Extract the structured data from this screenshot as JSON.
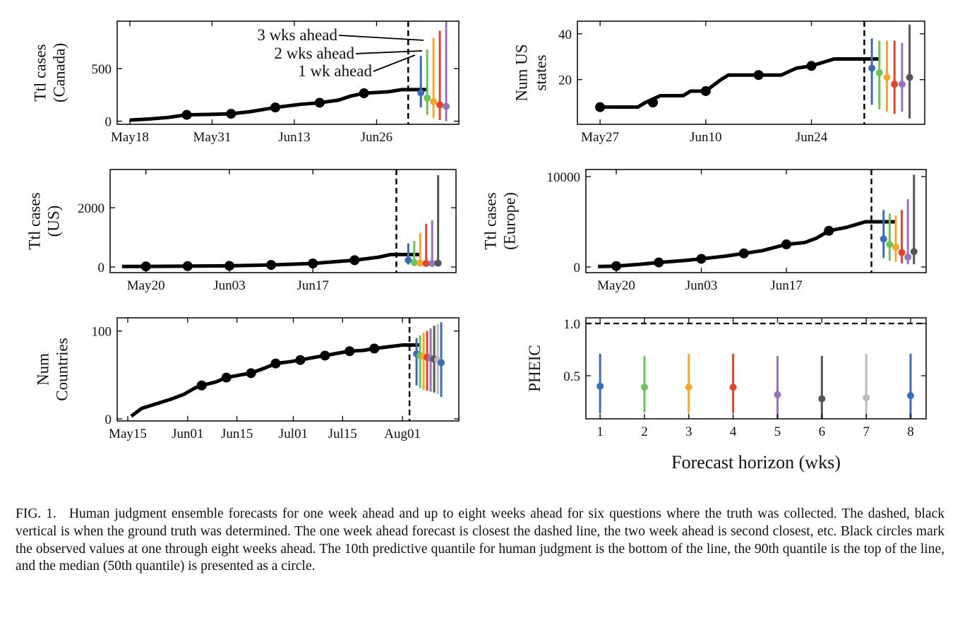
{
  "chart_data": [
    {
      "type": "line",
      "ylabel": [
        "Ttl cases",
        "(Canada)"
      ],
      "xlim": [
        "05-16",
        "07-09"
      ],
      "xticks": [
        {
          "value": "05-18",
          "label": "May18"
        },
        {
          "value": "05-31",
          "label": "May31"
        },
        {
          "value": "06-13",
          "label": "Jun13"
        },
        {
          "value": "06-26",
          "label": "Jun26"
        }
      ],
      "ylim": [
        -30,
        950
      ],
      "yticks": [
        0,
        500
      ],
      "x": [
        "05-18",
        "05-21",
        "05-24",
        "05-27",
        "05-31",
        "06-03",
        "06-06",
        "06-10",
        "06-14",
        "06-17",
        "06-20",
        "06-22",
        "06-24",
        "06-28",
        "06-30",
        "07-04"
      ],
      "values": [
        10,
        20,
        35,
        60,
        65,
        70,
        90,
        130,
        160,
        175,
        200,
        240,
        265,
        280,
        300,
        300
      ],
      "points": {
        "x": [
          "05-27",
          "06-03",
          "06-10",
          "06-17",
          "06-24"
        ],
        "values": [
          60,
          70,
          130,
          175,
          265
        ]
      },
      "truth": "07-01",
      "forecasts": {
        "x": [
          "07-03",
          "07-04",
          "07-05",
          "07-06",
          "07-07"
        ],
        "low": [
          130,
          60,
          30,
          10,
          0
        ],
        "median": [
          270,
          220,
          185,
          155,
          140
        ],
        "high": [
          620,
          680,
          790,
          860,
          950
        ],
        "colors": [
          "#3a6db5",
          "#6cc35a",
          "#f0a830",
          "#e0442a",
          "#9a72b8"
        ]
      },
      "annotations": [
        "3 wks ahead",
        "2 wks ahead",
        "1 wk ahead"
      ]
    },
    {
      "type": "line",
      "ylabel": [
        "Num US",
        "states"
      ],
      "xlim": [
        "05-24",
        "07-09"
      ],
      "xticks": [
        {
          "value": "05-27",
          "label": "May27"
        },
        {
          "value": "06-10",
          "label": "Jun10"
        },
        {
          "value": "06-24",
          "label": "Jun24"
        }
      ],
      "ylim": [
        0.5,
        45.5
      ],
      "yticks": [
        20,
        40
      ],
      "x": [
        "05-27",
        "06-01",
        "06-02",
        "06-04",
        "06-07",
        "06-08",
        "06-10",
        "06-12",
        "06-13",
        "06-20",
        "06-22",
        "06-24",
        "06-27",
        "07-03"
      ],
      "values": [
        8,
        8,
        10,
        13,
        13,
        15,
        15,
        20,
        22,
        22,
        25,
        26,
        29,
        29
      ],
      "points": {
        "x": [
          "05-27",
          "06-03",
          "06-10",
          "06-17",
          "06-24"
        ],
        "values": [
          8,
          10,
          15,
          22,
          26
        ]
      },
      "truth": "07-01",
      "forecasts": {
        "x": [
          "07-02",
          "07-03",
          "07-04",
          "07-05",
          "07-06",
          "07-07"
        ],
        "low": [
          9,
          7,
          6,
          5,
          6,
          3
        ],
        "median": [
          25,
          23,
          21,
          18,
          18,
          21
        ],
        "high": [
          38,
          37,
          37,
          37,
          36,
          44
        ],
        "colors": [
          "#3a6db5",
          "#6cc35a",
          "#f0a830",
          "#e0442a",
          "#9a72b8",
          "#555555"
        ]
      }
    },
    {
      "type": "line",
      "ylabel": [
        "Ttl cases",
        "(US)"
      ],
      "xlim": [
        "05-14",
        "07-11"
      ],
      "xticks": [
        {
          "value": "05-20",
          "label": "May20"
        },
        {
          "value": "06-03",
          "label": "Jun03"
        },
        {
          "value": "06-17",
          "label": "Jun17"
        }
      ],
      "ylim": [
        -190,
        3290
      ],
      "yticks": [
        0,
        2000
      ],
      "x": [
        "05-16",
        "05-20",
        "05-27",
        "06-03",
        "06-10",
        "06-17",
        "06-24",
        "06-28",
        "06-30",
        "07-05"
      ],
      "values": [
        20,
        20,
        30,
        40,
        70,
        120,
        230,
        330,
        420,
        420
      ],
      "points": {
        "x": [
          "05-20",
          "05-27",
          "06-03",
          "06-10",
          "06-17",
          "06-24"
        ],
        "values": [
          20,
          30,
          40,
          70,
          120,
          230
        ]
      },
      "truth": "07-01",
      "forecasts": {
        "x": [
          "07-03",
          "07-04",
          "07-05",
          "07-06",
          "07-07",
          "07-08"
        ],
        "low": [
          80,
          50,
          40,
          30,
          20,
          20
        ],
        "median": [
          230,
          150,
          130,
          120,
          120,
          130
        ],
        "high": [
          800,
          880,
          1150,
          1450,
          1580,
          3100
        ],
        "colors": [
          "#3a6db5",
          "#6cc35a",
          "#f0a830",
          "#e0442a",
          "#9a72b8",
          "#555555"
        ]
      }
    },
    {
      "type": "line",
      "ylabel": [
        "Ttl cases",
        "(Europe)"
      ],
      "xlim": [
        "05-15",
        "07-10"
      ],
      "xticks": [
        {
          "value": "05-20",
          "label": "May20"
        },
        {
          "value": "06-03",
          "label": "Jun03"
        },
        {
          "value": "06-17",
          "label": "Jun17"
        }
      ],
      "ylim": [
        -625,
        10780
      ],
      "yticks": [
        0,
        10000
      ],
      "x": [
        "05-17",
        "05-20",
        "05-24",
        "05-27",
        "05-31",
        "06-03",
        "06-07",
        "06-10",
        "06-13",
        "06-17",
        "06-20",
        "06-22",
        "06-24",
        "06-27",
        "06-30",
        "07-05"
      ],
      "values": [
        50,
        100,
        300,
        500,
        700,
        900,
        1200,
        1500,
        1800,
        2500,
        2700,
        3200,
        4000,
        4400,
        5000,
        5000
      ],
      "points": {
        "x": [
          "05-20",
          "05-27",
          "06-03",
          "06-10",
          "06-17",
          "06-24"
        ],
        "values": [
          100,
          500,
          900,
          1500,
          2500,
          4000
        ]
      },
      "truth": "07-01",
      "forecasts": {
        "x": [
          "07-03",
          "07-04",
          "07-05",
          "07-06",
          "07-07",
          "07-08"
        ],
        "low": [
          1000,
          700,
          600,
          400,
          300,
          300
        ],
        "median": [
          3100,
          2500,
          2200,
          1600,
          1100,
          1700
        ],
        "high": [
          6300,
          5900,
          5700,
          6300,
          7500,
          10200
        ],
        "colors": [
          "#3a6db5",
          "#6cc35a",
          "#f0a830",
          "#e0442a",
          "#9a72b8",
          "#555555"
        ]
      }
    },
    {
      "type": "line",
      "ylabel": [
        "Num",
        "Countries"
      ],
      "xlim": [
        "05-12",
        "08-17"
      ],
      "xticks": [
        {
          "value": "05-15",
          "label": "May15"
        },
        {
          "value": "06-01",
          "label": "Jun01"
        },
        {
          "value": "06-15",
          "label": "Jun15"
        },
        {
          "value": "07-01",
          "label": "Jul01"
        },
        {
          "value": "07-15",
          "label": "Jul15"
        },
        {
          "value": "08-01",
          "label": "Aug01"
        }
      ],
      "ylim": [
        -2.4,
        115
      ],
      "yticks": [
        0,
        100
      ],
      "x": [
        "05-16",
        "05-19",
        "05-23",
        "05-27",
        "05-31",
        "06-03",
        "06-05",
        "06-09",
        "06-12",
        "06-16",
        "06-19",
        "06-23",
        "06-26",
        "06-30",
        "07-03",
        "07-07",
        "07-10",
        "07-14",
        "07-17",
        "07-21",
        "07-24",
        "07-28",
        "08-01",
        "08-06"
      ],
      "values": [
        3,
        12,
        17,
        22,
        28,
        35,
        38,
        42,
        47,
        50,
        52,
        58,
        63,
        65,
        67,
        70,
        72,
        75,
        77,
        78,
        80,
        82,
        84,
        84
      ],
      "points": {
        "x": [
          "06-05",
          "06-12",
          "06-19",
          "06-26",
          "07-03",
          "07-10",
          "07-17",
          "07-24"
        ],
        "values": [
          38,
          47,
          52,
          63,
          67,
          72,
          77,
          80
        ]
      },
      "truth": "08-03",
      "forecasts": {
        "x": [
          "08-05",
          "08-06",
          "08-07",
          "08-08",
          "08-09",
          "08-10",
          "08-11",
          "08-12"
        ],
        "low": [
          38,
          35,
          33,
          32,
          31,
          30,
          28,
          25
        ],
        "median": [
          74,
          72,
          71,
          70,
          69,
          68,
          67,
          64
        ],
        "high": [
          92,
          95,
          98,
          100,
          103,
          106,
          108,
          110
        ],
        "colors": [
          "#3a6db5",
          "#6cc35a",
          "#f0a830",
          "#e0442a",
          "#9a72b8",
          "#555555",
          "#bbbbbb",
          "#3a6db5"
        ]
      }
    },
    {
      "type": "interval",
      "ylabel": [
        "PHEIC"
      ],
      "xlabel": "Forecast horizon (wks)",
      "xlim": [
        0.68,
        8.35
      ],
      "xticks": [
        1,
        2,
        3,
        4,
        5,
        6,
        7,
        8
      ],
      "ylim": [
        0.088,
        1.054
      ],
      "yticks": [
        0.5,
        {
          "value": 1,
          "label": "1.0"
        }
      ],
      "hline": 1,
      "forecasts": {
        "x": [
          1,
          2,
          3,
          4,
          5,
          6,
          7,
          8
        ],
        "low": [
          0.14,
          0.15,
          0.14,
          0.14,
          0.09,
          0.09,
          0.1,
          0.09
        ],
        "median": [
          0.4,
          0.39,
          0.39,
          0.39,
          0.32,
          0.28,
          0.29,
          0.31
        ],
        "high": [
          0.71,
          0.69,
          0.71,
          0.71,
          0.69,
          0.69,
          0.71,
          0.71
        ],
        "colors": [
          "#3a6db5",
          "#6cc35a",
          "#f0a830",
          "#e0442a",
          "#9a72b8",
          "#555555",
          "#bbbbbb",
          "#3a6db5"
        ]
      }
    }
  ],
  "caption": {
    "label": "FIG. 1.",
    "text": "Human judgment ensemble forecasts for one week ahead and up to eight weeks ahead for six questions where the truth was collected. The dashed, black vertical is when the ground truth was determined. The one week ahead forecast is closest the dashed line, the two week ahead is second closest, etc. Black circles mark the observed values at one through eight weeks ahead. The 10th predictive quantile for human judgment is the bottom of the line, the 90th quantile is the top of the line, and the median (50th quantile) is presented as a circle."
  }
}
